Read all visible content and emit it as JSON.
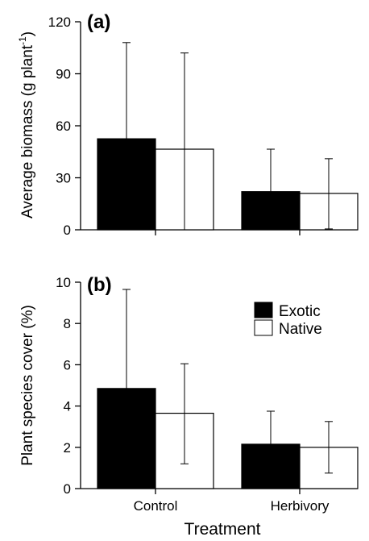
{
  "figure": {
    "xlabel": "Treatment",
    "categories": [
      "Control",
      "Herbivory"
    ]
  },
  "legend": {
    "placement": "top-right of panel (b)",
    "entries": [
      {
        "name": "Exotic",
        "color": "#000000"
      },
      {
        "name": "Native",
        "color": "#ffffff"
      }
    ]
  },
  "chart_data": [
    {
      "type": "bar",
      "panel_label": "(a)",
      "ylabel": "Average biomass (g plant",
      "ylabel_superscript": "-1",
      "ylabel_suffix": ")",
      "ylim": [
        0,
        120
      ],
      "yticks": [
        0,
        30,
        60,
        90,
        120
      ],
      "categories": [
        "Control",
        "Herbivory"
      ],
      "series": [
        {
          "name": "Exotic",
          "color": "#000000",
          "values": [
            52.5,
            22
          ],
          "error_upper": [
            108,
            46.5
          ],
          "error_lower": [
            52.5,
            22
          ]
        },
        {
          "name": "Native",
          "color": "#ffffff",
          "values": [
            46.5,
            21
          ],
          "error_upper": [
            102,
            41
          ],
          "error_lower": [
            0,
            0.5
          ]
        }
      ],
      "grid": false
    },
    {
      "type": "bar",
      "panel_label": "(b)",
      "ylabel": "Plant species cover (%)",
      "ylim": [
        0,
        10
      ],
      "yticks": [
        0,
        2,
        4,
        6,
        8,
        10
      ],
      "categories": [
        "Control",
        "Herbivory"
      ],
      "series": [
        {
          "name": "Exotic",
          "color": "#000000",
          "values": [
            4.85,
            2.15
          ],
          "error_upper": [
            9.65,
            3.75
          ],
          "error_lower": [
            4.85,
            2.15
          ]
        },
        {
          "name": "Native",
          "color": "#ffffff",
          "values": [
            3.65,
            2.0
          ],
          "error_upper": [
            6.05,
            3.25
          ],
          "error_lower": [
            1.2,
            0.75
          ]
        }
      ],
      "grid": false
    }
  ]
}
